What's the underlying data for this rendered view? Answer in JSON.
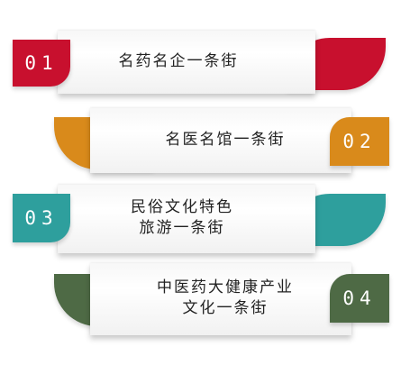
{
  "items": [
    {
      "num": "01",
      "line1": "名药名企一条街",
      "line2": "",
      "color": "#c8102e",
      "side": "left"
    },
    {
      "num": "02",
      "line1": "名医名馆一条街",
      "line2": "",
      "color": "#d98a1b",
      "side": "right"
    },
    {
      "num": "03",
      "line1": "民俗文化特色",
      "line2": "旅游一条街",
      "color": "#2e9f9d",
      "side": "left"
    },
    {
      "num": "04",
      "line1": "中医药大健康产业",
      "line2": "文化一条街",
      "color": "#4e6a45",
      "side": "right"
    }
  ]
}
